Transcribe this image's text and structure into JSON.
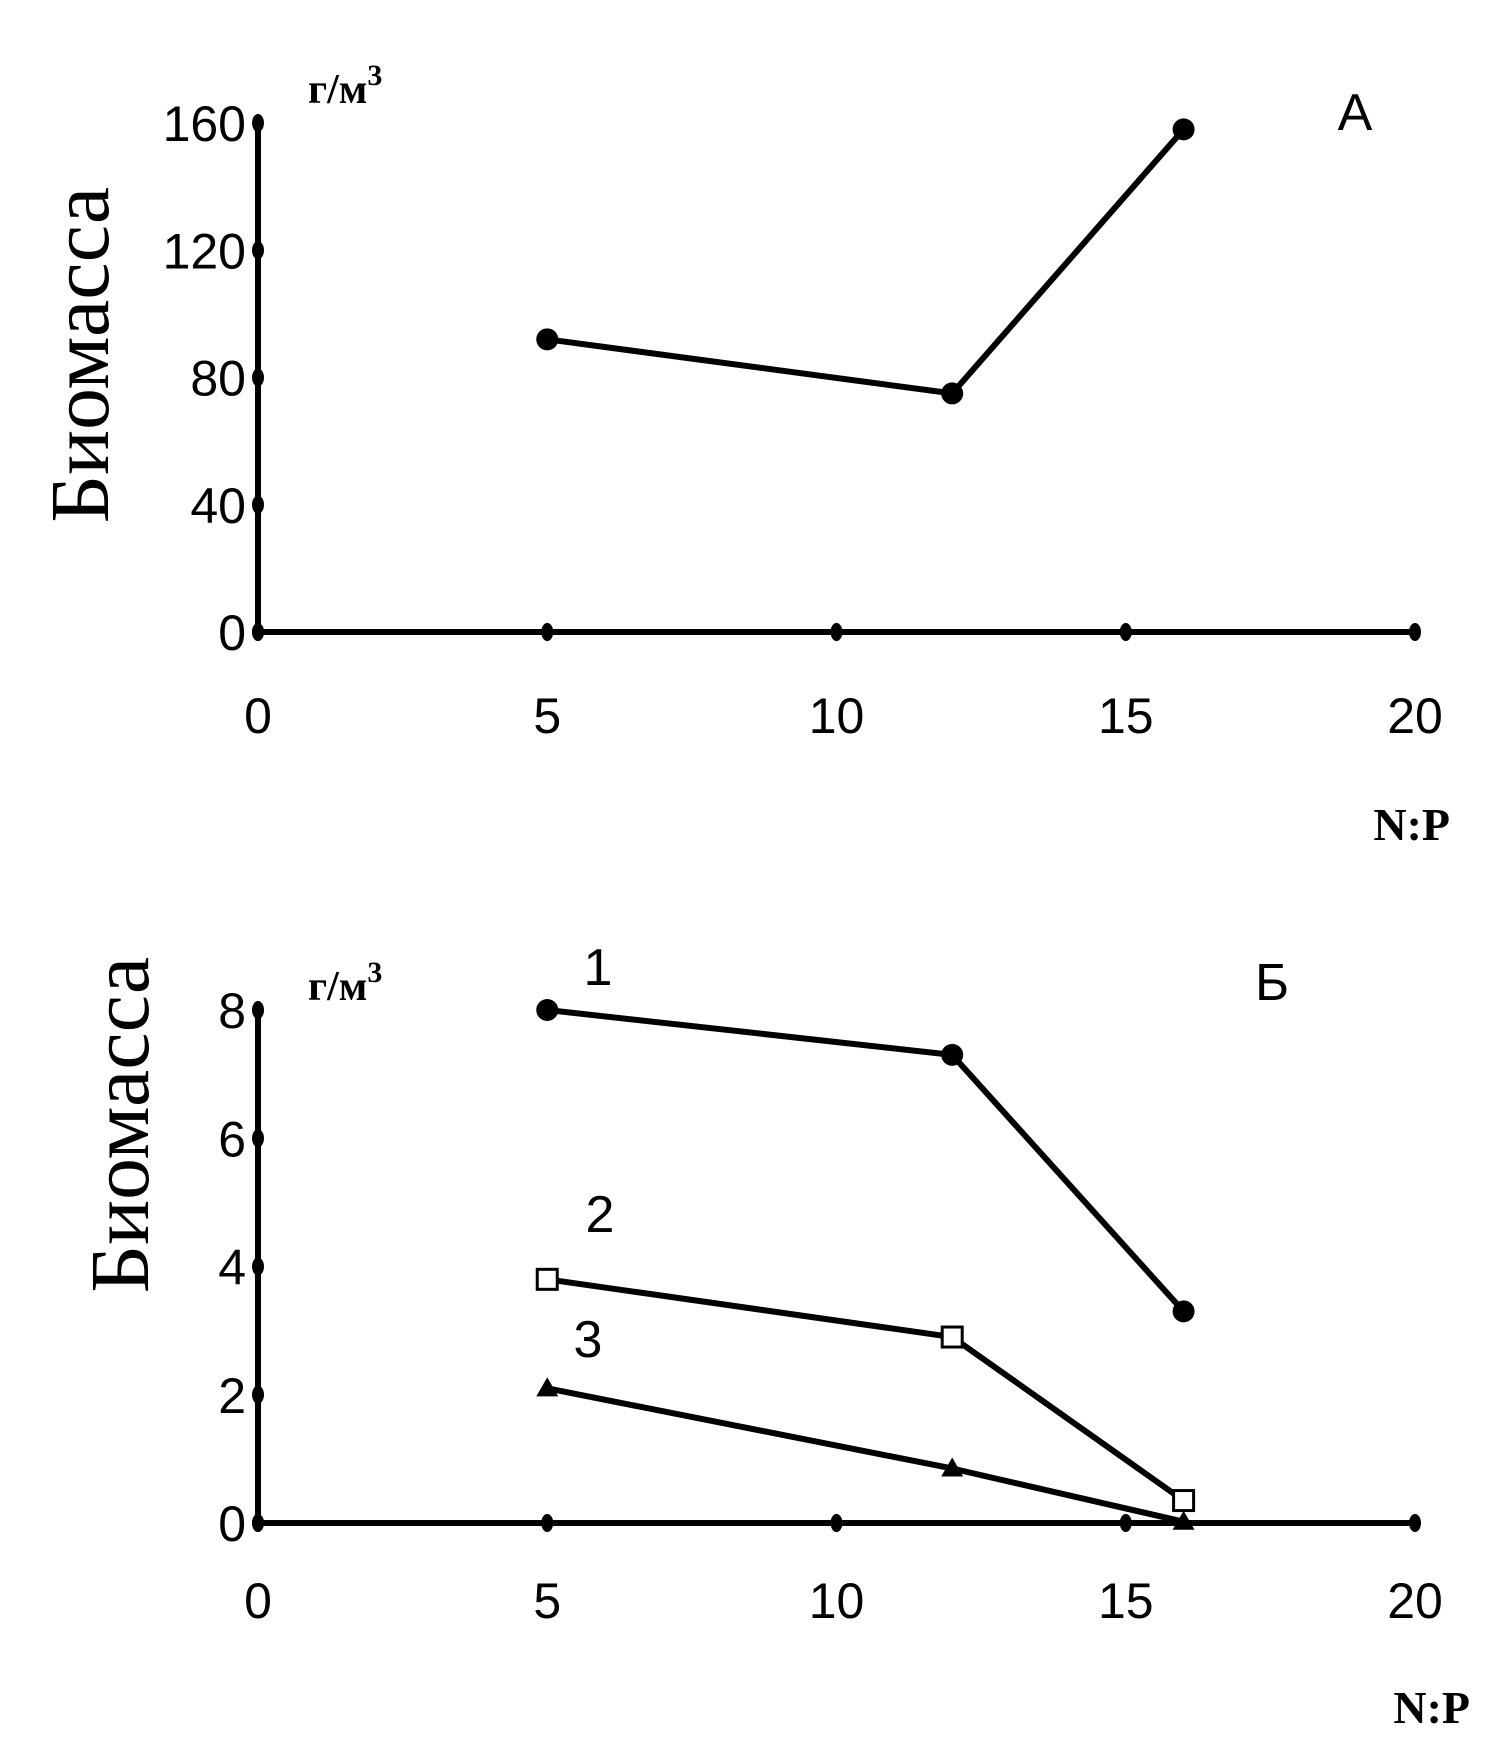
{
  "chart_data": [
    {
      "type": "line",
      "panel_label": "А",
      "ylabel": "Биомасса",
      "yunit": "г/м",
      "yunit_sup": "3",
      "xlabel": "N:P",
      "xlim": [
        0,
        20
      ],
      "ylim": [
        0,
        160
      ],
      "x_ticks": [
        "0",
        "5",
        "10",
        "15",
        "20"
      ],
      "y_ticks": [
        "0",
        "40",
        "80",
        "120",
        "160"
      ],
      "grid": false,
      "series": [
        {
          "label": "",
          "marker": "filled-circle",
          "x": [
            5,
            12,
            16
          ],
          "y": [
            92,
            75,
            158
          ]
        }
      ]
    },
    {
      "type": "line",
      "panel_label": "Б",
      "ylabel": "Биомасса",
      "yunit": "г/м",
      "yunit_sup": "3",
      "xlabel": "N:P",
      "xlim": [
        0,
        20
      ],
      "ylim": [
        0,
        8
      ],
      "x_ticks": [
        "0",
        "5",
        "10",
        "15",
        "20"
      ],
      "y_ticks": [
        "0",
        "2",
        "4",
        "6",
        "8"
      ],
      "grid": false,
      "series": [
        {
          "label": "1",
          "marker": "filled-circle",
          "x": [
            5,
            12,
            16
          ],
          "y": [
            8.0,
            7.3,
            3.3
          ]
        },
        {
          "label": "2",
          "marker": "open-square",
          "x": [
            5,
            12,
            16
          ],
          "y": [
            3.8,
            2.9,
            0.35
          ]
        },
        {
          "label": "3",
          "marker": "filled-triangle",
          "x": [
            5,
            12,
            16
          ],
          "y": [
            2.1,
            0.85,
            0.02
          ]
        }
      ]
    }
  ]
}
